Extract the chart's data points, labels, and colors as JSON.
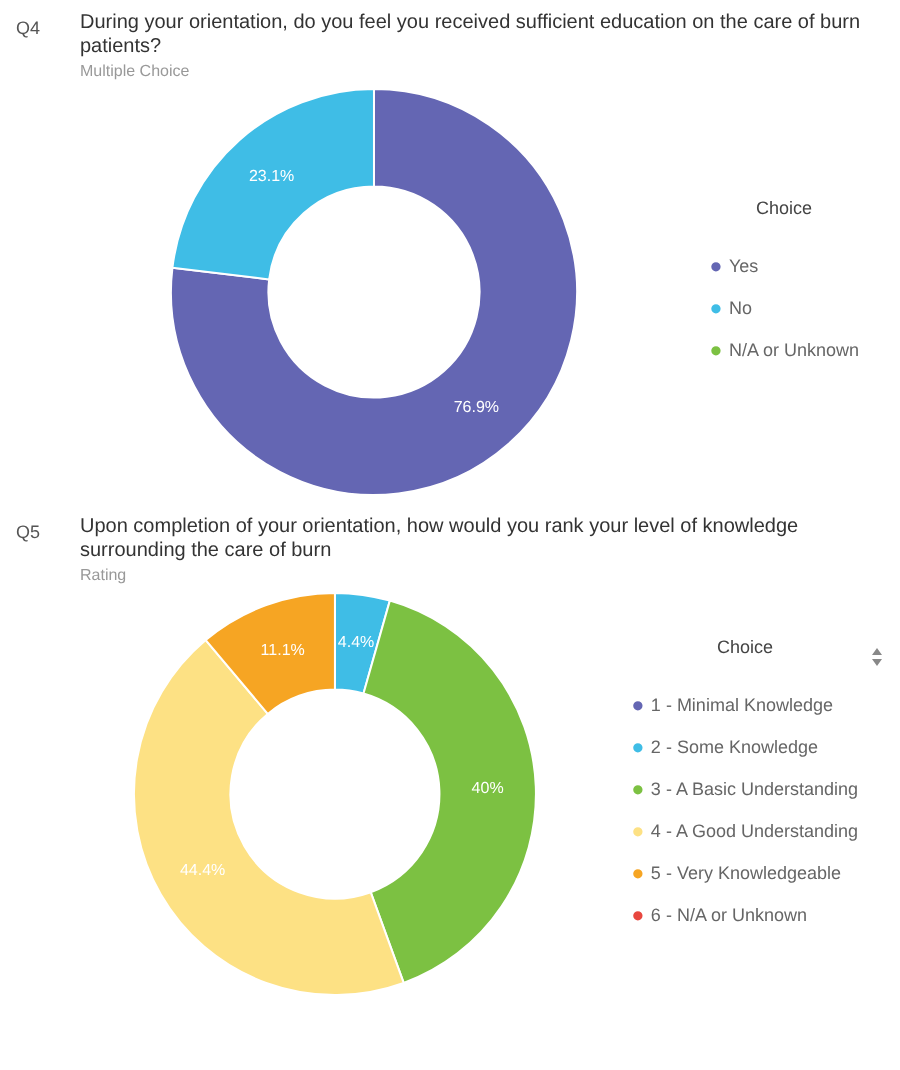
{
  "chart_data": [
    {
      "type": "donut",
      "title": "During your orientation, do you feel you received sufficient education on the care of burn patients?",
      "subtitle": "Multiple Choice",
      "annotations": [
        "Q4"
      ],
      "legend_title": "Choice",
      "legend": "right",
      "categories": [
        "Yes",
        "No",
        "N/A or Unknown"
      ],
      "values": [
        76.9,
        23.1,
        0
      ],
      "colors": [
        "#6466b3",
        "#3fbde6",
        "#7cc142"
      ],
      "value_labels": [
        "76.9%",
        "23.1%",
        null
      ]
    },
    {
      "type": "donut",
      "title": "Upon completion of your orientation, how would you rank your level of knowledge surrounding the care of burn",
      "subtitle": "Rating",
      "annotations": [
        "Q5"
      ],
      "legend_title": "Choice",
      "legend": "right",
      "categories": [
        "1 - Minimal Knowledge",
        "2 - Some Knowledge",
        "3 - A Basic Understanding",
        "4 - A Good Understanding",
        "5 - Very Knowledgeable",
        "6 - N/A or Unknown"
      ],
      "values": [
        0,
        4.4,
        40,
        44.4,
        11.1,
        0
      ],
      "colors": [
        "#6466b3",
        "#3fbde6",
        "#7cc142",
        "#fde184",
        "#f6a523",
        "#e8473f"
      ],
      "value_labels": [
        null,
        "4.4%",
        "40%",
        "44.4%",
        "11.1%",
        null
      ]
    }
  ]
}
